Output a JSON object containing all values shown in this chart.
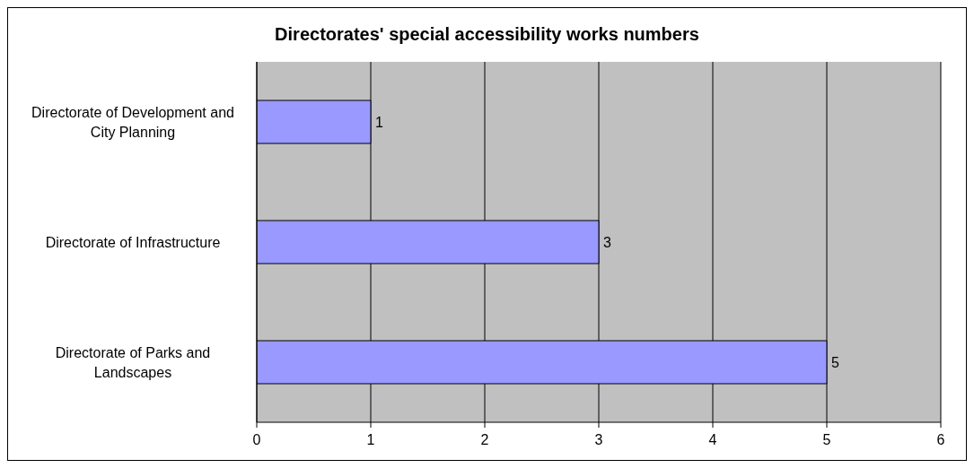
{
  "chart_data": {
    "type": "bar",
    "orientation": "horizontal",
    "title": "Directorates' special accessibility works numbers",
    "categories": [
      "Directorate of Development and City Planning",
      "Directorate of Infrastructure",
      "Directorate of Parks and Landscapes"
    ],
    "values": [
      1,
      3,
      5
    ],
    "color": "#9999ff",
    "xlim": [
      0,
      6
    ],
    "xticks": [
      0,
      1,
      2,
      3,
      4,
      5,
      6
    ],
    "grid": "x",
    "data_labels": true
  }
}
